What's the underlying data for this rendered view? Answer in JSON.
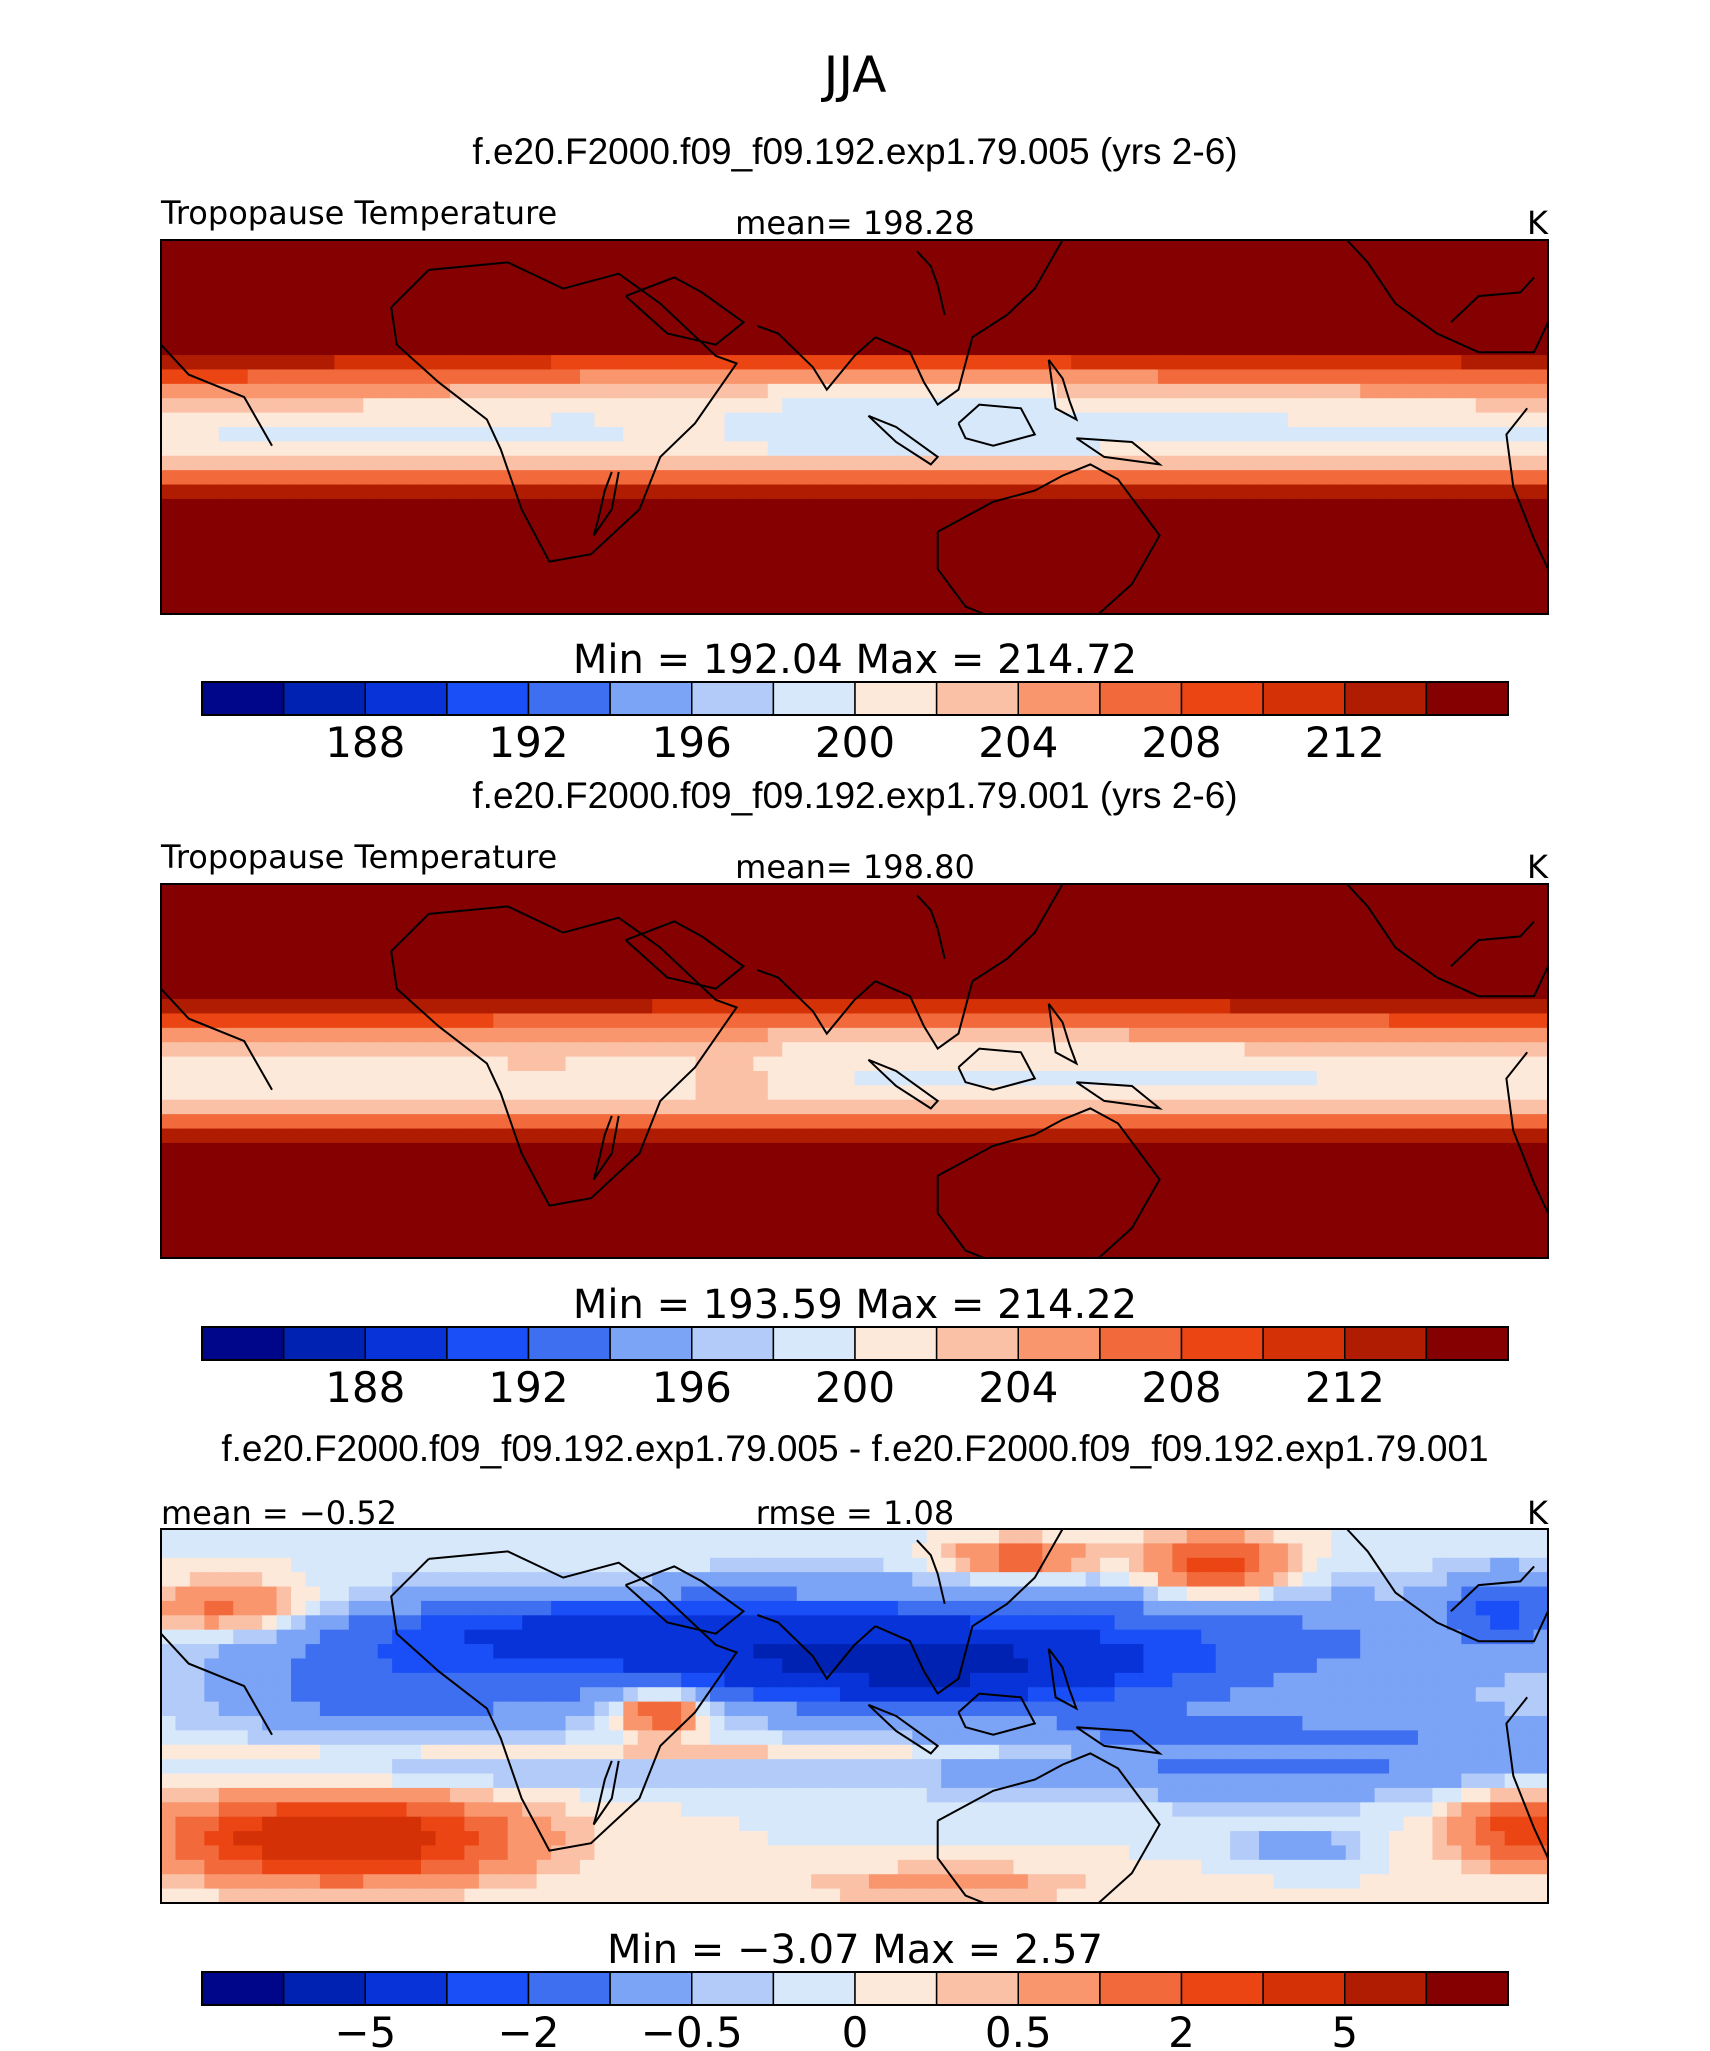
{
  "title": "JJA",
  "panels": [
    {
      "title": "f.e20.F2000.f09_f09.192.exp1.79.005 (yrs 2-6)",
      "left_label": "Tropopause Temperature",
      "center_label": "mean= 198.28",
      "units": "K",
      "minmax": "Min = 192.04 Max = 214.72",
      "kind": "abs1"
    },
    {
      "title": "f.e20.F2000.f09_f09.192.exp1.79.001 (yrs 2-6)",
      "left_label": "Tropopause Temperature",
      "center_label": "mean= 198.80",
      "units": "K",
      "minmax": "Min = 193.59 Max = 214.22",
      "kind": "abs2"
    },
    {
      "title": "f.e20.F2000.f09_f09.192.exp1.79.005 - f.e20.F2000.f09_f09.192.exp1.79.001",
      "left_label": "mean = −0.52",
      "center_label": "rmse = 1.08",
      "units": "K",
      "minmax": "Min = −3.07 Max = 2.57",
      "kind": "diff"
    }
  ],
  "colors": [
    "#00068a",
    "#0022b2",
    "#0833d9",
    "#1a4ef7",
    "#3e6ff0",
    "#7ba3f6",
    "#b2cbf8",
    "#d8e8fb",
    "#fde9d9",
    "#fbc1a6",
    "#f9966e",
    "#f26a3c",
    "#ec4514",
    "#d53106",
    "#b01c02",
    "#850000"
  ],
  "chart_data": [
    {
      "type": "heatmap",
      "name": "Tropopause Temperature (case 005)",
      "units": "K",
      "mean": 198.28,
      "min": 192.04,
      "max": 214.72,
      "colorbar_levels": [
        186,
        187,
        188,
        190,
        192,
        193,
        194,
        196,
        198,
        200,
        202,
        204,
        206,
        208,
        210,
        212
      ],
      "colorbar_tick_labels": [
        "188",
        "192",
        "196",
        "200",
        "204",
        "208",
        "212"
      ]
    },
    {
      "type": "heatmap",
      "name": "Tropopause Temperature (case 001)",
      "units": "K",
      "mean": 198.8,
      "min": 193.59,
      "max": 214.22,
      "colorbar_levels": [
        186,
        187,
        188,
        190,
        192,
        193,
        194,
        196,
        198,
        200,
        202,
        204,
        206,
        208,
        210,
        212
      ],
      "colorbar_tick_labels": [
        "188",
        "192",
        "196",
        "200",
        "204",
        "208",
        "212"
      ]
    },
    {
      "type": "heatmap",
      "name": "Difference (005 - 001)",
      "units": "K",
      "mean": -0.52,
      "rmse": 1.08,
      "min": -3.07,
      "max": 2.57,
      "colorbar_tick_labels": [
        "−5",
        "−2",
        "−0.5",
        "0",
        "0.5",
        "2",
        "5"
      ]
    }
  ]
}
